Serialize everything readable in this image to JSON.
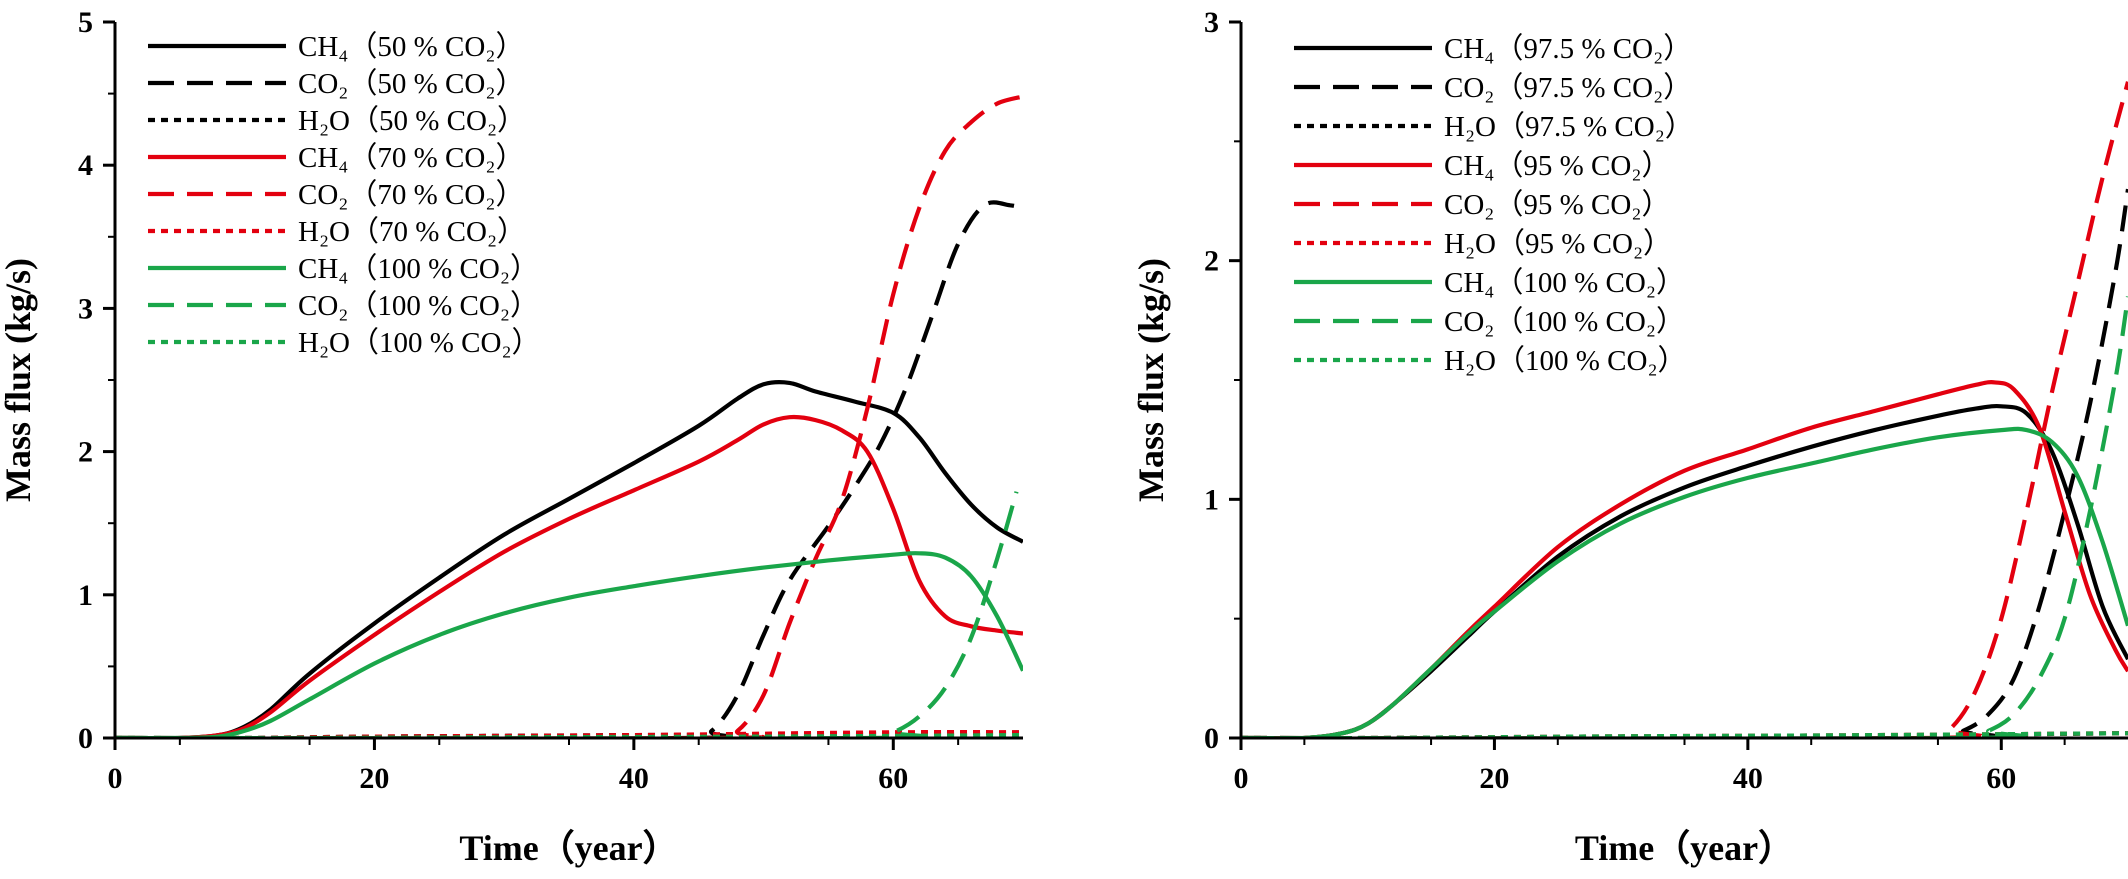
{
  "chart_data": [
    {
      "type": "line",
      "title": "",
      "xlabel": "Time（year）",
      "ylabel": "Mass flux (kg/s)",
      "xlim": [
        0,
        70
      ],
      "ylim": [
        0,
        5
      ],
      "xticks": [
        0,
        20,
        40,
        60
      ],
      "yticks": [
        0,
        1,
        2,
        3,
        4,
        5
      ],
      "grid": false,
      "legend_position": "top-left",
      "series": [
        {
          "name": "CH₄（50 % CO₂）",
          "color": "#000000",
          "dash": "solid",
          "points": [
            [
              0,
              0
            ],
            [
              5,
              0
            ],
            [
              8,
              0.02
            ],
            [
              10,
              0.08
            ],
            [
              12,
              0.2
            ],
            [
              15,
              0.45
            ],
            [
              20,
              0.8
            ],
            [
              25,
              1.12
            ],
            [
              30,
              1.42
            ],
            [
              35,
              1.67
            ],
            [
              40,
              1.92
            ],
            [
              45,
              2.18
            ],
            [
              48,
              2.37
            ],
            [
              50,
              2.47
            ],
            [
              52,
              2.48
            ],
            [
              54,
              2.42
            ],
            [
              57,
              2.35
            ],
            [
              60,
              2.27
            ],
            [
              62,
              2.1
            ],
            [
              64,
              1.85
            ],
            [
              66,
              1.63
            ],
            [
              68,
              1.47
            ],
            [
              70,
              1.37
            ]
          ]
        },
        {
          "name": "CO₂（50 % CO₂）",
          "color": "#000000",
          "dash": "long",
          "points": [
            [
              0,
              0
            ],
            [
              44,
              0
            ],
            [
              46,
              0.05
            ],
            [
              48,
              0.3
            ],
            [
              50,
              0.72
            ],
            [
              52,
              1.1
            ],
            [
              55,
              1.48
            ],
            [
              57,
              1.75
            ],
            [
              59,
              2.05
            ],
            [
              61,
              2.45
            ],
            [
              63,
              2.95
            ],
            [
              65,
              3.45
            ],
            [
              67,
              3.72
            ],
            [
              69,
              3.72
            ],
            [
              70,
              3.7
            ]
          ]
        },
        {
          "name": "H₂O（50 % CO₂）",
          "color": "#000000",
          "dash": "short",
          "points": [
            [
              0,
              0
            ],
            [
              10,
              0
            ],
            [
              20,
              0.01
            ],
            [
              40,
              0.02
            ],
            [
              60,
              0.03
            ],
            [
              70,
              0.04
            ]
          ]
        },
        {
          "name": "CH₄（70 % CO₂）",
          "color": "#e3000f",
          "dash": "solid",
          "points": [
            [
              0,
              0
            ],
            [
              5,
              0
            ],
            [
              8,
              0.02
            ],
            [
              10,
              0.07
            ],
            [
              12,
              0.18
            ],
            [
              15,
              0.4
            ],
            [
              20,
              0.72
            ],
            [
              25,
              1.02
            ],
            [
              30,
              1.3
            ],
            [
              35,
              1.53
            ],
            [
              40,
              1.73
            ],
            [
              45,
              1.93
            ],
            [
              48,
              2.08
            ],
            [
              50,
              2.19
            ],
            [
              52,
              2.24
            ],
            [
              54,
              2.22
            ],
            [
              56,
              2.15
            ],
            [
              58,
              2.0
            ],
            [
              60,
              1.6
            ],
            [
              62,
              1.1
            ],
            [
              64,
              0.85
            ],
            [
              66,
              0.78
            ],
            [
              68,
              0.75
            ],
            [
              70,
              0.73
            ]
          ]
        },
        {
          "name": "CO₂（70 % CO₂）",
          "color": "#e3000f",
          "dash": "long",
          "points": [
            [
              0,
              0
            ],
            [
              46,
              0
            ],
            [
              48,
              0.05
            ],
            [
              50,
              0.3
            ],
            [
              52,
              0.8
            ],
            [
              54,
              1.25
            ],
            [
              56,
              1.65
            ],
            [
              58,
              2.3
            ],
            [
              60,
              3.1
            ],
            [
              62,
              3.7
            ],
            [
              64,
              4.1
            ],
            [
              66,
              4.3
            ],
            [
              68,
              4.43
            ],
            [
              70,
              4.48
            ]
          ]
        },
        {
          "name": "H₂O（70 % CO₂）",
          "color": "#e3000f",
          "dash": "short",
          "points": [
            [
              0,
              0
            ],
            [
              10,
              0
            ],
            [
              20,
              0.01
            ],
            [
              40,
              0.02
            ],
            [
              60,
              0.04
            ],
            [
              70,
              0.04
            ]
          ]
        },
        {
          "name": "CH₄（100 % CO₂）",
          "color": "#1aa64a",
          "dash": "solid",
          "points": [
            [
              0,
              0
            ],
            [
              5,
              0
            ],
            [
              8,
              0.01
            ],
            [
              10,
              0.05
            ],
            [
              12,
              0.12
            ],
            [
              15,
              0.27
            ],
            [
              20,
              0.52
            ],
            [
              25,
              0.72
            ],
            [
              30,
              0.87
            ],
            [
              35,
              0.98
            ],
            [
              40,
              1.06
            ],
            [
              45,
              1.13
            ],
            [
              50,
              1.19
            ],
            [
              55,
              1.24
            ],
            [
              60,
              1.28
            ],
            [
              62,
              1.29
            ],
            [
              64,
              1.26
            ],
            [
              66,
              1.13
            ],
            [
              68,
              0.85
            ],
            [
              70,
              0.47
            ]
          ]
        },
        {
          "name": "CO₂（100 % CO₂）",
          "color": "#1aa64a",
          "dash": "long",
          "points": [
            [
              0,
              0
            ],
            [
              58,
              0
            ],
            [
              60,
              0.04
            ],
            [
              62,
              0.15
            ],
            [
              64,
              0.35
            ],
            [
              66,
              0.7
            ],
            [
              68,
              1.25
            ],
            [
              69.5,
              1.72
            ]
          ]
        },
        {
          "name": "H₂O（100 % CO₂）",
          "color": "#1aa64a",
          "dash": "short",
          "points": [
            [
              0,
              0
            ],
            [
              10,
              0
            ],
            [
              30,
              0.005
            ],
            [
              50,
              0.01
            ],
            [
              70,
              0.02
            ]
          ]
        }
      ]
    },
    {
      "type": "line",
      "title": "",
      "xlabel": "Time（year）",
      "ylabel": "Mass flux (kg/s)",
      "xlim": [
        0,
        70
      ],
      "ylim": [
        0,
        3
      ],
      "xticks": [
        0,
        20,
        40,
        60
      ],
      "yticks": [
        0,
        1,
        2,
        3
      ],
      "grid": false,
      "legend_position": "top-left",
      "series": [
        {
          "name": "CH₄（97.5 % CO₂）",
          "color": "#000000",
          "dash": "solid",
          "points": [
            [
              0,
              0
            ],
            [
              5,
              0
            ],
            [
              8,
              0.02
            ],
            [
              10,
              0.06
            ],
            [
              12,
              0.14
            ],
            [
              15,
              0.28
            ],
            [
              18,
              0.43
            ],
            [
              20,
              0.53
            ],
            [
              25,
              0.76
            ],
            [
              30,
              0.93
            ],
            [
              35,
              1.05
            ],
            [
              40,
              1.14
            ],
            [
              45,
              1.22
            ],
            [
              50,
              1.29
            ],
            [
              55,
              1.35
            ],
            [
              58,
              1.38
            ],
            [
              60,
              1.39
            ],
            [
              62,
              1.36
            ],
            [
              64,
              1.2
            ],
            [
              66,
              0.9
            ],
            [
              68,
              0.55
            ],
            [
              70,
              0.33
            ]
          ]
        },
        {
          "name": "CO₂（97.5 % CO₂）",
          "color": "#000000",
          "dash": "long",
          "points": [
            [
              0,
              0
            ],
            [
              55,
              0
            ],
            [
              57,
              0.03
            ],
            [
              59,
              0.1
            ],
            [
              61,
              0.25
            ],
            [
              63,
              0.55
            ],
            [
              65,
              0.95
            ],
            [
              67,
              1.4
            ],
            [
              69,
              1.95
            ],
            [
              70,
              2.3
            ]
          ]
        },
        {
          "name": "H₂O（97.5 % CO₂）",
          "color": "#000000",
          "dash": "short",
          "points": [
            [
              0,
              0
            ],
            [
              10,
              0
            ],
            [
              30,
              0.005
            ],
            [
              50,
              0.01
            ],
            [
              70,
              0.02
            ]
          ]
        },
        {
          "name": "CH₄（95 % CO₂）",
          "color": "#e3000f",
          "dash": "solid",
          "points": [
            [
              0,
              0
            ],
            [
              5,
              0
            ],
            [
              8,
              0.02
            ],
            [
              10,
              0.06
            ],
            [
              12,
              0.14
            ],
            [
              15,
              0.29
            ],
            [
              18,
              0.45
            ],
            [
              20,
              0.55
            ],
            [
              25,
              0.8
            ],
            [
              30,
              0.98
            ],
            [
              35,
              1.12
            ],
            [
              40,
              1.21
            ],
            [
              45,
              1.3
            ],
            [
              50,
              1.37
            ],
            [
              55,
              1.44
            ],
            [
              58,
              1.48
            ],
            [
              59.5,
              1.49
            ],
            [
              61,
              1.46
            ],
            [
              63,
              1.3
            ],
            [
              65,
              0.95
            ],
            [
              67,
              0.6
            ],
            [
              69,
              0.37
            ],
            [
              70,
              0.28
            ]
          ]
        },
        {
          "name": "CO₂（95 % CO₂）",
          "color": "#e3000f",
          "dash": "long",
          "points": [
            [
              0,
              0
            ],
            [
              54,
              0
            ],
            [
              56,
              0.04
            ],
            [
              58,
              0.2
            ],
            [
              60,
              0.5
            ],
            [
              62,
              0.95
            ],
            [
              64,
              1.45
            ],
            [
              66,
              1.9
            ],
            [
              68,
              2.35
            ],
            [
              70,
              2.75
            ]
          ]
        },
        {
          "name": "H₂O（95 % CO₂）",
          "color": "#e3000f",
          "dash": "short",
          "points": [
            [
              0,
              0
            ],
            [
              10,
              0
            ],
            [
              30,
              0.007
            ],
            [
              50,
              0.012
            ],
            [
              70,
              0.02
            ]
          ]
        },
        {
          "name": "CH₄（100 % CO₂）",
          "color": "#1aa64a",
          "dash": "solid",
          "points": [
            [
              0,
              0
            ],
            [
              5,
              0
            ],
            [
              8,
              0.02
            ],
            [
              10,
              0.06
            ],
            [
              12,
              0.14
            ],
            [
              15,
              0.29
            ],
            [
              18,
              0.44
            ],
            [
              20,
              0.53
            ],
            [
              25,
              0.74
            ],
            [
              30,
              0.9
            ],
            [
              35,
              1.01
            ],
            [
              40,
              1.09
            ],
            [
              45,
              1.15
            ],
            [
              50,
              1.21
            ],
            [
              55,
              1.26
            ],
            [
              60,
              1.29
            ],
            [
              62,
              1.29
            ],
            [
              64,
              1.24
            ],
            [
              66,
              1.1
            ],
            [
              68,
              0.82
            ],
            [
              70,
              0.47
            ]
          ]
        },
        {
          "name": "CO₂（100 % CO₂）",
          "color": "#1aa64a",
          "dash": "long",
          "points": [
            [
              0,
              0
            ],
            [
              57,
              0
            ],
            [
              59,
              0.03
            ],
            [
              61,
              0.1
            ],
            [
              63,
              0.25
            ],
            [
              65,
              0.5
            ],
            [
              67,
              0.95
            ],
            [
              69,
              1.5
            ],
            [
              70,
              1.85
            ]
          ]
        },
        {
          "name": "H₂O（100 % CO₂）",
          "color": "#1aa64a",
          "dash": "short",
          "points": [
            [
              0,
              0
            ],
            [
              10,
              0
            ],
            [
              30,
              0.007
            ],
            [
              50,
              0.012
            ],
            [
              70,
              0.02
            ]
          ]
        }
      ]
    }
  ]
}
